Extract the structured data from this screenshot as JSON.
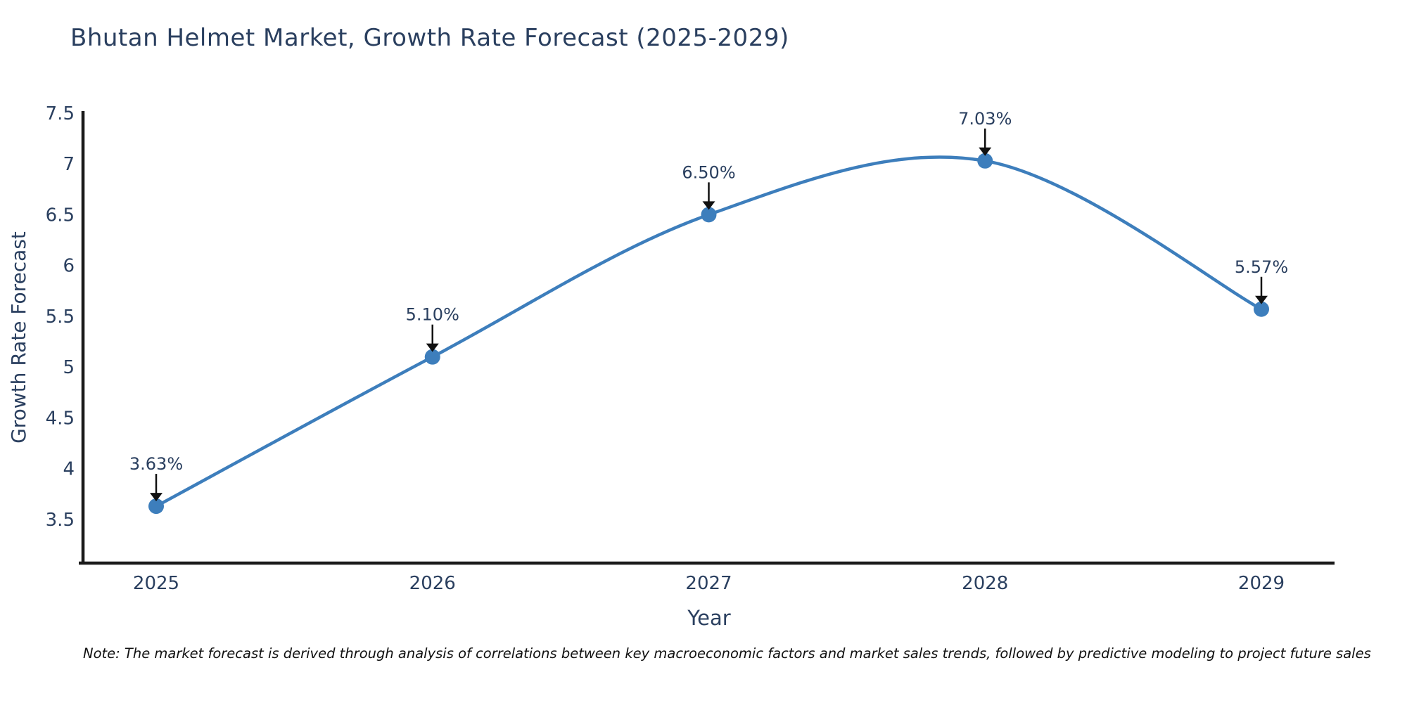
{
  "page": {
    "background": "#ffffff"
  },
  "note": "Note: The market forecast is derived through analysis of correlations between key macroeconomic factors and market sales trends, followed by predictive modeling to project future sales",
  "chart_data": {
    "type": "line",
    "title": "Bhutan Helmet Market, Growth Rate Forecast (2025-2029)",
    "xlabel": "Year",
    "ylabel": "Growth Rate Forecast",
    "categories": [
      "2025",
      "2026",
      "2027",
      "2028",
      "2029"
    ],
    "series": [
      {
        "name": "Growth Rate Forecast",
        "values": [
          3.63,
          5.1,
          6.5,
          7.03,
          5.57
        ]
      }
    ],
    "point_labels": [
      "3.63%",
      "5.10%",
      "6.50%",
      "7.03%",
      "5.57%"
    ],
    "yticks": [
      "3.5",
      "4",
      "4.5",
      "5",
      "5.5",
      "6",
      "6.5",
      "7",
      "7.5"
    ],
    "ylim": [
      3.07,
      7.52
    ],
    "line_shape": "spline",
    "grid": false,
    "legend_position": "none",
    "colors": {
      "line": "#3d7ebc",
      "marker": "#3d7ebc",
      "axis": "#1a1a1a",
      "text": "#2a3f5f",
      "annotation_arrow": "#111111"
    }
  }
}
